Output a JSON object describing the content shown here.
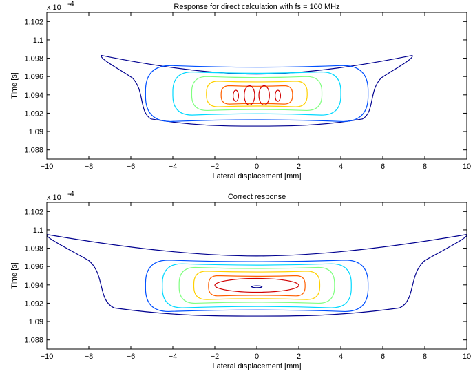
{
  "chart_data": [
    {
      "type": "contour",
      "title": "Response for direct calculation with fs = 100 MHz",
      "xlabel": "Lateral displacement [mm]",
      "ylabel": "Time [s]",
      "y_exponent_label": "x 10",
      "y_exponent_power": "-4",
      "xlim": [
        -10,
        10
      ],
      "ylim": [
        1.087,
        1.103
      ],
      "xticks": [
        -10,
        -8,
        -6,
        -4,
        -2,
        0,
        2,
        4,
        6,
        8,
        10
      ],
      "xtick_labels": [
        "−10",
        "−8",
        "−6",
        "−4",
        "−2",
        "0",
        "2",
        "4",
        "6",
        "8",
        "10"
      ],
      "yticks": [
        1.088,
        1.09,
        1.092,
        1.094,
        1.096,
        1.098,
        1.1,
        1.102
      ],
      "ytick_labels": [
        "1.088",
        "1.09",
        "1.092",
        "1.094",
        "1.096",
        "1.098",
        "1.1",
        "1.102"
      ],
      "grid": false,
      "colormap": "jet",
      "contours": [
        {
          "color": "#00008f",
          "hw": 7.4,
          "top": 1.0983,
          "bottom": 1.0906,
          "style": "spread"
        },
        {
          "color": "#0050ff",
          "hw": 5.3,
          "top": 1.0972,
          "bottom": 1.0911,
          "style": "box"
        },
        {
          "color": "#00d8ff",
          "hw": 4.0,
          "top": 1.0965,
          "bottom": 1.0918,
          "style": "box"
        },
        {
          "color": "#80ff80",
          "hw": 3.1,
          "top": 1.096,
          "bottom": 1.0923,
          "style": "box"
        },
        {
          "color": "#ffd000",
          "hw": 2.4,
          "top": 1.0955,
          "bottom": 1.0927,
          "style": "box"
        },
        {
          "color": "#ff6000",
          "hw": 1.7,
          "top": 1.095,
          "bottom": 1.093,
          "style": "box"
        },
        {
          "color": "#d00000",
          "hw": 0.25,
          "cx": -0.35,
          "top": 1.095,
          "bottom": 1.0929,
          "style": "ellipse"
        },
        {
          "color": "#d00000",
          "hw": 0.25,
          "cx": 0.35,
          "top": 1.095,
          "bottom": 1.0929,
          "style": "ellipse"
        },
        {
          "color": "#d00000",
          "hw": 0.13,
          "cx": -1.0,
          "top": 1.0945,
          "bottom": 1.0933,
          "style": "ellipse"
        },
        {
          "color": "#d00000",
          "hw": 0.13,
          "cx": 1.0,
          "top": 1.0945,
          "bottom": 1.0933,
          "style": "ellipse"
        }
      ]
    },
    {
      "type": "contour",
      "title": "Correct response",
      "xlabel": "Lateral displacement [mm]",
      "ylabel": "Time [s]",
      "y_exponent_label": "x 10",
      "y_exponent_power": "-4",
      "xlim": [
        -10,
        10
      ],
      "ylim": [
        1.087,
        1.103
      ],
      "xticks": [
        -10,
        -8,
        -6,
        -4,
        -2,
        0,
        2,
        4,
        6,
        8,
        10
      ],
      "xtick_labels": [
        "−10",
        "−8",
        "−6",
        "−4",
        "−2",
        "0",
        "2",
        "4",
        "6",
        "8",
        "10"
      ],
      "yticks": [
        1.088,
        1.09,
        1.092,
        1.094,
        1.096,
        1.098,
        1.1,
        1.102
      ],
      "ytick_labels": [
        "1.088",
        "1.09",
        "1.092",
        "1.094",
        "1.096",
        "1.098",
        "1.1",
        "1.102"
      ],
      "grid": false,
      "colormap": "jet",
      "contours": [
        {
          "color": "#00008f",
          "hw": 10.0,
          "top": 1.0995,
          "bottom": 1.0906,
          "style": "spread"
        },
        {
          "color": "#0050ff",
          "hw": 5.3,
          "top": 1.0967,
          "bottom": 1.0911,
          "style": "box"
        },
        {
          "color": "#00d8ff",
          "hw": 4.5,
          "top": 1.0963,
          "bottom": 1.0915,
          "style": "box"
        },
        {
          "color": "#80ff80",
          "hw": 3.7,
          "top": 1.0959,
          "bottom": 1.092,
          "style": "box"
        },
        {
          "color": "#ffd000",
          "hw": 3.0,
          "top": 1.0955,
          "bottom": 1.0924,
          "style": "box"
        },
        {
          "color": "#ff6000",
          "hw": 2.3,
          "top": 1.095,
          "bottom": 1.0928,
          "style": "box"
        },
        {
          "color": "#d00000",
          "hw": 2.0,
          "top": 1.0947,
          "bottom": 1.0932,
          "style": "ellipse"
        },
        {
          "color": "#00008f",
          "hw": 0.25,
          "top": 1.0939,
          "bottom": 1.0937,
          "style": "ellipse"
        }
      ]
    }
  ]
}
